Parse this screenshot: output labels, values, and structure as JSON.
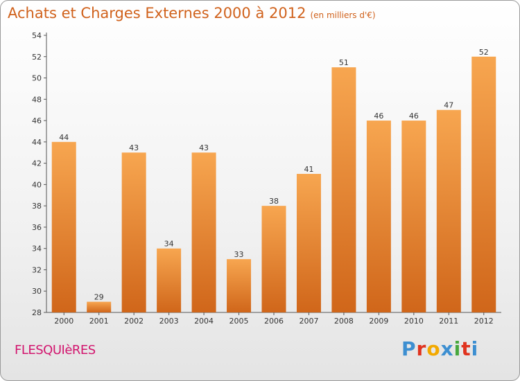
{
  "title": "Achats et Charges Externes 2000 à 2012",
  "subtitle": "(en milliers d'€)",
  "commune": "FLESQUIèRES",
  "logo": {
    "letters": [
      "P",
      "r",
      "o",
      "x",
      "i",
      "t",
      "i"
    ],
    "colors": [
      "#3d8fd1",
      "#e0331f",
      "#f2a900",
      "#3d8fd1",
      "#48a83e",
      "#e0331f",
      "#3d8fd1"
    ]
  },
  "colors": {
    "title": "#d0611b",
    "bar_top": "#f7a650",
    "bar_bottom": "#d0661a",
    "commune": "#d2156e"
  },
  "chart_data": {
    "type": "bar",
    "categories": [
      "2000",
      "2001",
      "2002",
      "2003",
      "2004",
      "2005",
      "2006",
      "2007",
      "2008",
      "2009",
      "2010",
      "2011",
      "2012"
    ],
    "values": [
      44,
      29,
      43,
      34,
      43,
      33,
      38,
      41,
      51,
      46,
      46,
      47,
      52
    ],
    "ylim": [
      28,
      54
    ],
    "yticks": [
      28,
      30,
      32,
      34,
      36,
      38,
      40,
      42,
      44,
      46,
      48,
      50,
      52,
      54
    ],
    "grid": false,
    "legend": "none"
  }
}
